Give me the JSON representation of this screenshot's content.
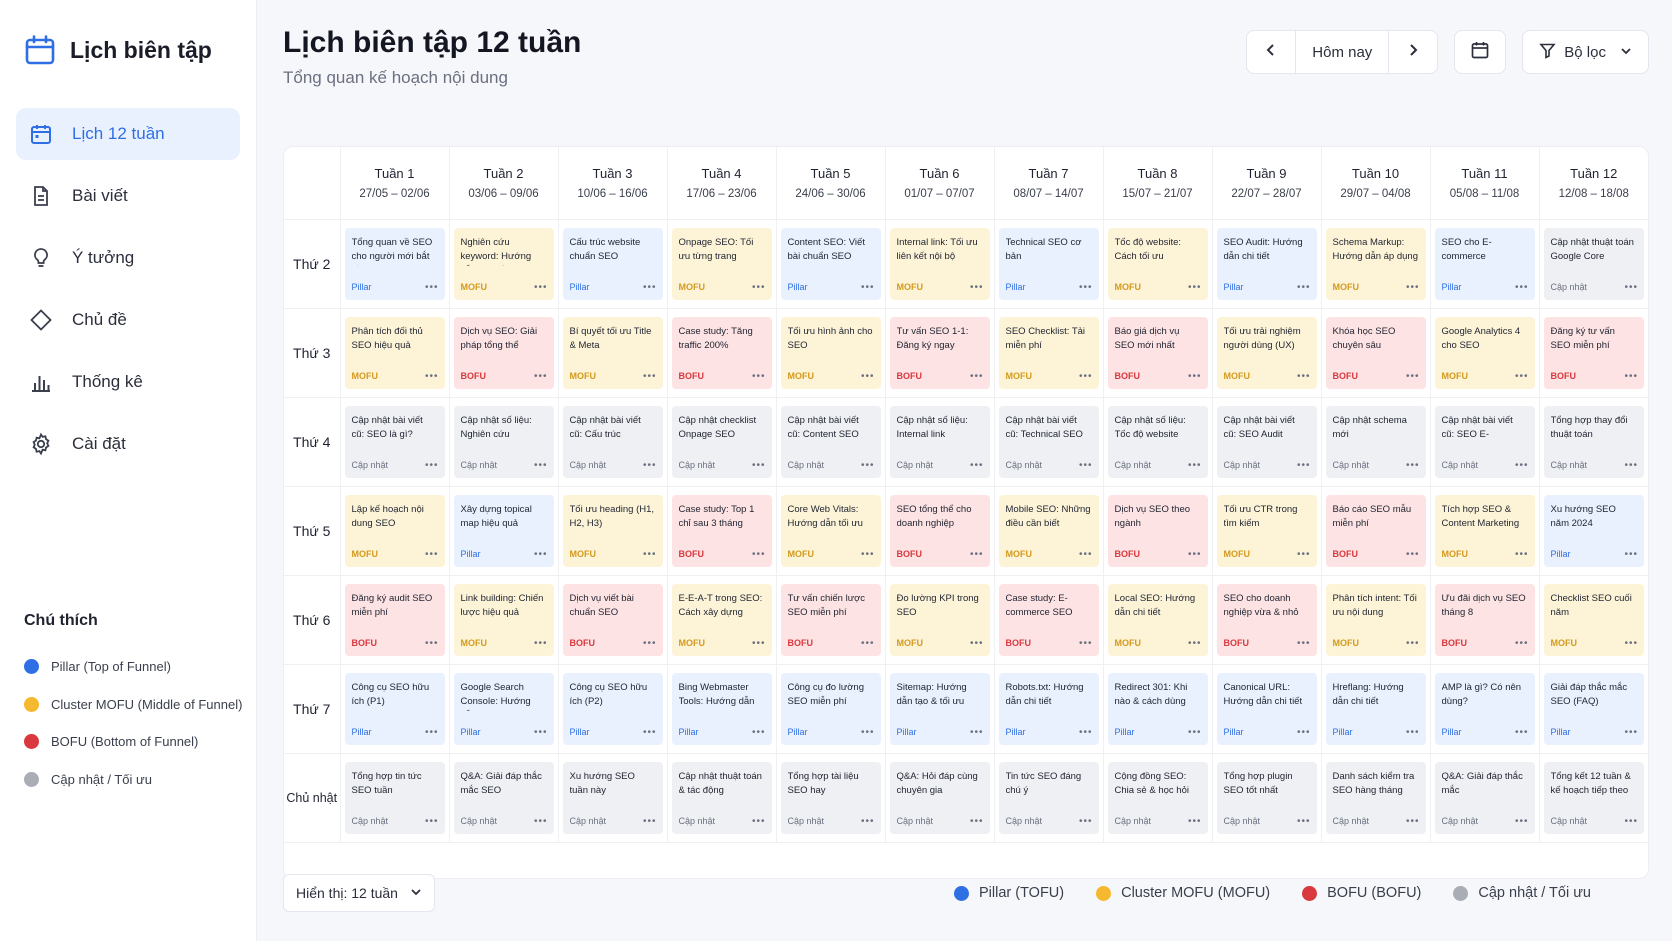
{
  "app": {
    "brand": "Lịch biên tập"
  },
  "sidebar": {
    "items": [
      {
        "label": "Lịch 12 tuần",
        "icon": "calendar-icon",
        "active": true
      },
      {
        "label": "Bài viết",
        "icon": "document-icon"
      },
      {
        "label": "Ý tưởng",
        "icon": "lightbulb-icon"
      },
      {
        "label": "Chủ đề",
        "icon": "tag-icon"
      },
      {
        "label": "Thống kê",
        "icon": "bar-chart-icon"
      },
      {
        "label": "Cài đặt",
        "icon": "gear-icon"
      }
    ],
    "legend_title": "Chú thích",
    "legend": [
      {
        "label": "Pillar (Top of Funnel)",
        "color": "#2f6fe4"
      },
      {
        "label": "Cluster MOFU (Middle of Funnel)",
        "color": "#f5b82e"
      },
      {
        "label": "BOFU (Bottom of Funnel)",
        "color": "#d9383e"
      },
      {
        "label": "Cập nhật / Tối ưu",
        "color": "#a9adb6"
      }
    ]
  },
  "header": {
    "title": "Lịch biên tập 12 tuần",
    "subtitle": "Tổng quan kế hoạch nội dung",
    "today": "Hôm nay",
    "filter": "Bộ lọc"
  },
  "weeks": [
    {
      "label": "Tuần 1",
      "range": "27/05 – 02/06"
    },
    {
      "label": "Tuần 2",
      "range": "03/06 – 09/06"
    },
    {
      "label": "Tuần 3",
      "range": "10/06 – 16/06"
    },
    {
      "label": "Tuần 4",
      "range": "17/06 – 23/06"
    },
    {
      "label": "Tuần 5",
      "range": "24/06 – 30/06"
    },
    {
      "label": "Tuần 6",
      "range": "01/07 – 07/07"
    },
    {
      "label": "Tuần 7",
      "range": "08/07 – 14/07"
    },
    {
      "label": "Tuần 8",
      "range": "15/07 – 21/07"
    },
    {
      "label": "Tuần 9",
      "range": "22/07 – 28/07"
    },
    {
      "label": "Tuần 10",
      "range": "29/07 – 04/08"
    },
    {
      "label": "Tuần 11",
      "range": "05/08 – 11/08"
    },
    {
      "label": "Tuần 12",
      "range": "12/08 – 18/08"
    }
  ],
  "tag_labels": {
    "pillar": "Pillar",
    "mofu": "MOFU",
    "bofu": "BOFU",
    "update": "Cập nhật"
  },
  "rows": [
    {
      "day": "Thứ 2",
      "cards": [
        {
          "t": "Tổng quan về SEO cho người mới bắt đầu",
          "k": "pillar"
        },
        {
          "t": "Nghiên cứu keyword: Hướng dẫn chi tiết",
          "k": "mofu"
        },
        {
          "t": "Cấu trúc website chuẩn SEO",
          "k": "pillar"
        },
        {
          "t": "Onpage SEO: Tối ưu từng trang",
          "k": "mofu"
        },
        {
          "t": "Content SEO: Viết bài chuẩn SEO",
          "k": "pillar"
        },
        {
          "t": "Internal link: Tối ưu liên kết nội bộ",
          "k": "mofu"
        },
        {
          "t": "Technical SEO cơ bản",
          "k": "pillar"
        },
        {
          "t": "Tốc độ website: Cách tối ưu",
          "k": "mofu"
        },
        {
          "t": "SEO Audit: Hướng dẫn chi tiết",
          "k": "pillar"
        },
        {
          "t": "Schema Markup: Hướng dẫn áp dụng",
          "k": "mofu"
        },
        {
          "t": "SEO cho E-commerce",
          "k": "pillar"
        },
        {
          "t": "Cập nhật thuật toán Google Core Update",
          "k": "update"
        }
      ]
    },
    {
      "day": "Thứ 3",
      "cards": [
        {
          "t": "Phân tích đối thủ SEO hiệu quả",
          "k": "mofu"
        },
        {
          "t": "Dịch vụ SEO: Giải pháp tổng thể",
          "k": "bofu"
        },
        {
          "t": "Bí quyết tối ưu Title & Meta",
          "k": "mofu"
        },
        {
          "t": "Case study: Tăng traffic 200%",
          "k": "bofu"
        },
        {
          "t": "Tối ưu hình ảnh cho SEO",
          "k": "mofu"
        },
        {
          "t": "Tư vấn SEO 1-1: Đăng ký ngay",
          "k": "bofu"
        },
        {
          "t": "SEO Checklist: Tải miễn phí",
          "k": "mofu"
        },
        {
          "t": "Báo giá dịch vụ SEO mới nhất",
          "k": "bofu"
        },
        {
          "t": "Tối ưu trải nghiệm người dùng (UX)",
          "k": "mofu"
        },
        {
          "t": "Khóa học SEO chuyên sâu",
          "k": "bofu"
        },
        {
          "t": "Google Analytics 4 cho SEO",
          "k": "mofu"
        },
        {
          "t": "Đăng ký tư vấn SEO miễn phí",
          "k": "bofu"
        }
      ]
    },
    {
      "day": "Thứ 4",
      "cards": [
        {
          "t": "Cập nhật bài viết cũ: SEO là gì?",
          "k": "update"
        },
        {
          "t": "Cập nhật số liệu: Nghiên cứu keyword",
          "k": "update"
        },
        {
          "t": "Cập nhật bài viết cũ: Cấu trúc website",
          "k": "update"
        },
        {
          "t": "Cập nhật checklist Onpage SEO",
          "k": "update"
        },
        {
          "t": "Cập nhật bài viết cũ: Content SEO",
          "k": "update"
        },
        {
          "t": "Cập nhật số liệu: Internal link",
          "k": "update"
        },
        {
          "t": "Cập nhật bài viết cũ: Technical SEO",
          "k": "update"
        },
        {
          "t": "Cập nhật số liệu: Tốc độ website",
          "k": "update"
        },
        {
          "t": "Cập nhật bài viết cũ: SEO Audit",
          "k": "update"
        },
        {
          "t": "Cập nhật schema mới",
          "k": "update"
        },
        {
          "t": "Cập nhật bài viết cũ: SEO E-commerce",
          "k": "update"
        },
        {
          "t": "Tổng hợp thay đổi thuật toán",
          "k": "update"
        }
      ]
    },
    {
      "day": "Thứ 5",
      "cards": [
        {
          "t": "Lập kế hoạch nội dung SEO",
          "k": "mofu"
        },
        {
          "t": "Xây dựng topical map hiệu quả",
          "k": "pillar"
        },
        {
          "t": "Tối ưu heading (H1, H2, H3)",
          "k": "mofu"
        },
        {
          "t": "Case study: Top 1 chỉ sau 3 tháng",
          "k": "bofu"
        },
        {
          "t": "Core Web Vitals: Hướng dẫn tối ưu",
          "k": "mofu"
        },
        {
          "t": "SEO tổng thể cho doanh nghiệp",
          "k": "bofu"
        },
        {
          "t": "Mobile SEO: Những điều cần biết",
          "k": "mofu"
        },
        {
          "t": "Dịch vụ SEO theo ngành",
          "k": "bofu"
        },
        {
          "t": "Tối ưu CTR trong tìm kiếm",
          "k": "mofu"
        },
        {
          "t": "Báo cáo SEO mẫu miễn phí",
          "k": "bofu"
        },
        {
          "t": "Tích hợp SEO & Content Marketing",
          "k": "mofu"
        },
        {
          "t": "Xu hướng SEO năm 2024",
          "k": "pillar"
        }
      ]
    },
    {
      "day": "Thứ 6",
      "cards": [
        {
          "t": "Đăng ký audit SEO miễn phí",
          "k": "bofu"
        },
        {
          "t": "Link building: Chiến lược hiệu quả",
          "k": "mofu"
        },
        {
          "t": "Dịch vụ viết bài chuẩn SEO",
          "k": "bofu"
        },
        {
          "t": "E-E-A-T trong SEO: Cách xây dựng",
          "k": "mofu"
        },
        {
          "t": "Tư vấn chiến lược SEO miễn phí",
          "k": "bofu"
        },
        {
          "t": "Đo lường KPI trong SEO",
          "k": "mofu"
        },
        {
          "t": "Case study: E-commerce SEO",
          "k": "bofu"
        },
        {
          "t": "Local SEO: Hướng dẫn chi tiết",
          "k": "mofu"
        },
        {
          "t": "SEO cho doanh nghiệp vừa & nhỏ",
          "k": "bofu"
        },
        {
          "t": "Phân tích intent: Tối ưu nội dung",
          "k": "mofu"
        },
        {
          "t": "Ưu đãi dịch vụ SEO tháng 8",
          "k": "bofu"
        },
        {
          "t": "Checklist SEO cuối năm",
          "k": "mofu"
        }
      ]
    },
    {
      "day": "Thứ 7",
      "cards": [
        {
          "t": "Công cụ SEO hữu ích (P1)",
          "k": "pillar"
        },
        {
          "t": "Google Search Console: Hướng dẫn",
          "k": "pillar"
        },
        {
          "t": "Công cụ SEO hữu ích (P2)",
          "k": "pillar"
        },
        {
          "t": "Bing Webmaster Tools: Hướng dẫn",
          "k": "pillar"
        },
        {
          "t": "Công cụ đo lường SEO miễn phí",
          "k": "pillar"
        },
        {
          "t": "Sitemap: Hướng dẫn tạo & tối ưu",
          "k": "pillar"
        },
        {
          "t": "Robots.txt: Hướng dẫn chi tiết",
          "k": "pillar"
        },
        {
          "t": "Redirect 301: Khi nào & cách dùng",
          "k": "pillar"
        },
        {
          "t": "Canonical URL: Hướng dẫn chi tiết",
          "k": "pillar"
        },
        {
          "t": "Hreflang: Hướng dẫn chi tiết",
          "k": "pillar"
        },
        {
          "t": "AMP là gì? Có nên dùng?",
          "k": "pillar"
        },
        {
          "t": "Giải đáp thắc mắc SEO (FAQ)",
          "k": "pillar"
        }
      ]
    },
    {
      "day": "Chủ nhật",
      "cards": [
        {
          "t": "Tổng hợp tin tức SEO tuần",
          "k": "update"
        },
        {
          "t": "Q&A: Giải đáp thắc mắc SEO",
          "k": "update"
        },
        {
          "t": "Xu hướng SEO tuần này",
          "k": "update"
        },
        {
          "t": "Cập nhật thuật toán & tác động",
          "k": "update"
        },
        {
          "t": "Tổng hợp tài liệu SEO hay",
          "k": "update"
        },
        {
          "t": "Q&A: Hỏi đáp cùng chuyên gia",
          "k": "update"
        },
        {
          "t": "Tin tức SEO đáng chú ý",
          "k": "update"
        },
        {
          "t": "Cộng đồng SEO: Chia sẻ & học hỏi",
          "k": "update"
        },
        {
          "t": "Tổng hợp plugin SEO tốt nhất",
          "k": "update"
        },
        {
          "t": "Danh sách kiểm tra SEO hàng tháng",
          "k": "update"
        },
        {
          "t": "Q&A: Giải đáp thắc mắc",
          "k": "update"
        },
        {
          "t": "Tổng kết 12 tuần & kế hoạch tiếp theo",
          "k": "update"
        }
      ]
    }
  ],
  "footer": {
    "show_select": "Hiển thị: 12 tuần",
    "legend": [
      {
        "label": "Pillar (TOFU)",
        "color": "#2f6fe4"
      },
      {
        "label": "Cluster MOFU (MOFU)",
        "color": "#f5b82e"
      },
      {
        "label": "BOFU (BOFU)",
        "color": "#d9383e"
      },
      {
        "label": "Cập nhật / Tối ưu",
        "color": "#a9adb6"
      }
    ]
  }
}
